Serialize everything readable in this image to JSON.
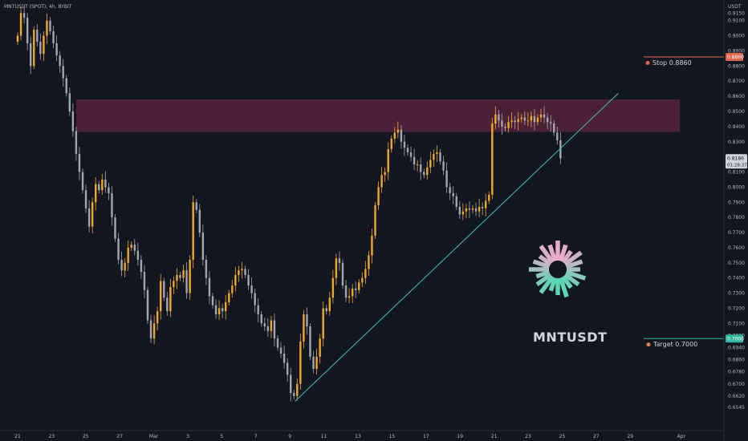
{
  "header": {
    "symbol_label": "MNTUSDT (SPOT), 4h, BYBIT",
    "currency": "USDT"
  },
  "brand_label": "MNTUSDT",
  "colors": {
    "background": "#131722",
    "up": "#f0a82a",
    "down": "#a5a7ae",
    "zone": "#7b2a4a",
    "trendline": "#3fc1b0",
    "stop": "#e0654a",
    "target": "#2fb59c",
    "text": "#b2b5be"
  },
  "chart_data": {
    "type": "candlestick",
    "title": "",
    "xlabel": "",
    "ylabel": "",
    "ylim": [
      0.6489,
      0.9174
    ],
    "y_ticks": [
      "0.9150",
      "0.9100",
      "0.9000",
      "0.8900",
      "0.8800",
      "0.8700",
      "0.8600",
      "0.8500",
      "0.8400",
      "0.8300",
      "0.8200",
      "0.8100",
      "0.8000",
      "0.7900",
      "0.7800",
      "0.7700",
      "0.7600",
      "0.7500",
      "0.7400",
      "0.7300",
      "0.7200",
      "0.7100",
      "0.7020",
      "0.6940",
      "0.6860",
      "0.6780",
      "0.6700",
      "0.6620",
      "0.6545"
    ],
    "x_ticks": [
      {
        "label": "21",
        "day": 0
      },
      {
        "label": "23",
        "day": 2
      },
      {
        "label": "25",
        "day": 4
      },
      {
        "label": "27",
        "day": 6
      },
      {
        "label": "Mar",
        "day": 8
      },
      {
        "label": "3",
        "day": 10
      },
      {
        "label": "5",
        "day": 12
      },
      {
        "label": "7",
        "day": 14
      },
      {
        "label": "9",
        "day": 16
      },
      {
        "label": "11",
        "day": 18
      },
      {
        "label": "13",
        "day": 20
      },
      {
        "label": "15",
        "day": 22
      },
      {
        "label": "17",
        "day": 24
      },
      {
        "label": "19",
        "day": 26
      },
      {
        "label": "21",
        "day": 28
      },
      {
        "label": "23",
        "day": 30
      },
      {
        "label": "25",
        "day": 32
      },
      {
        "label": "27",
        "day": 34
      },
      {
        "label": "29",
        "day": 36
      },
      {
        "label": "Apr",
        "day": 39
      }
    ],
    "series_close": [
      0.9,
      0.915,
      0.912,
      0.895,
      0.88,
      0.904,
      0.896,
      0.888,
      0.9,
      0.91,
      0.903,
      0.895,
      0.887,
      0.88,
      0.872,
      0.862,
      0.85,
      0.837,
      0.822,
      0.81,
      0.798,
      0.786,
      0.774,
      0.79,
      0.802,
      0.798,
      0.805,
      0.8,
      0.796,
      0.78,
      0.766,
      0.752,
      0.745,
      0.75,
      0.76,
      0.762,
      0.758,
      0.752,
      0.744,
      0.732,
      0.712,
      0.7,
      0.71,
      0.718,
      0.738,
      0.727,
      0.718,
      0.734,
      0.738,
      0.742,
      0.74,
      0.745,
      0.73,
      0.752,
      0.79,
      0.785,
      0.77,
      0.752,
      0.74,
      0.728,
      0.722,
      0.716,
      0.72,
      0.718,
      0.724,
      0.73,
      0.735,
      0.742,
      0.745,
      0.746,
      0.742,
      0.735,
      0.73,
      0.722,
      0.716,
      0.71,
      0.708,
      0.705,
      0.712,
      0.7,
      0.694,
      0.69,
      0.684,
      0.676,
      0.664,
      0.662,
      0.67,
      0.698,
      0.716,
      0.708,
      0.688,
      0.68,
      0.688,
      0.7,
      0.72,
      0.718,
      0.727,
      0.74,
      0.753,
      0.75,
      0.735,
      0.727,
      0.728,
      0.733,
      0.732,
      0.737,
      0.74,
      0.746,
      0.755,
      0.768,
      0.788,
      0.8,
      0.808,
      0.81,
      0.825,
      0.832,
      0.836,
      0.838,
      0.83,
      0.826,
      0.823,
      0.82,
      0.815,
      0.815,
      0.81,
      0.808,
      0.813,
      0.818,
      0.822,
      0.823,
      0.817,
      0.811,
      0.8,
      0.796,
      0.794,
      0.787,
      0.782,
      0.784,
      0.786,
      0.785,
      0.786,
      0.784,
      0.787,
      0.786,
      0.791,
      0.795,
      0.842,
      0.848,
      0.844,
      0.84,
      0.839,
      0.843,
      0.844,
      0.843,
      0.845,
      0.846,
      0.844,
      0.844,
      0.847,
      0.843,
      0.846,
      0.848,
      0.846,
      0.843,
      0.842,
      0.836,
      0.831,
      0.819
    ],
    "resistance_zone": {
      "from": 0.8365,
      "to": 0.858
    },
    "trendline": {
      "from_day": 16.3,
      "from_price": 0.6585,
      "to_day": 35.3,
      "to_price": 0.862
    },
    "stop_level": {
      "price": 0.886,
      "badge": "0.8860",
      "label": "Stop 0.8860"
    },
    "target_level": {
      "price": 0.7,
      "badge": "0.7000",
      "label": "Target 0.7000"
    },
    "last_price": {
      "price": 0.8186,
      "badge": "0.8186",
      "countdown": "01:28:37"
    }
  }
}
